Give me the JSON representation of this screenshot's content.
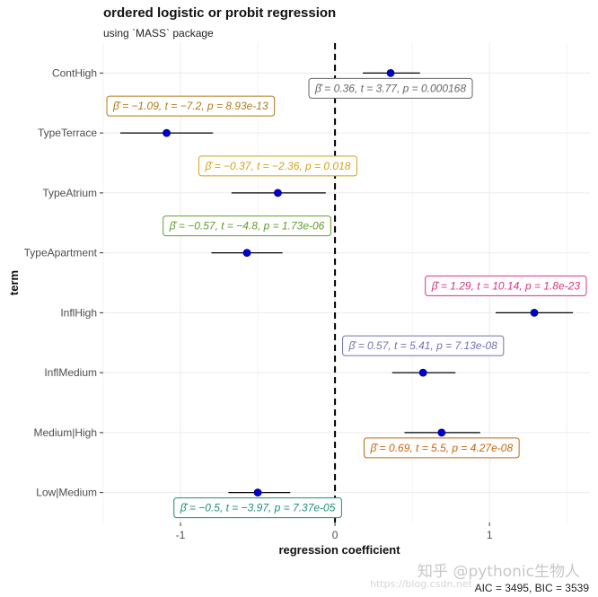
{
  "header": {
    "title": "ordered logistic or probit regression",
    "subtitle": "using `MASS` package"
  },
  "caption": "AIC = 3495, BIC = 3539",
  "watermark": {
    "main": "知乎 @pythonic生物人",
    "url": "https://blog.csdn.net"
  },
  "chart_data": {
    "type": "scatter",
    "subtype": "coefficient-plot",
    "xlabel": "regression coefficient",
    "ylabel": "term",
    "xlim": [
      -1.5,
      1.65
    ],
    "xticks": [
      -1,
      0,
      1
    ],
    "reference_line": 0,
    "grid": true,
    "legend": "none",
    "point_color": "#0000cd",
    "terms": [
      {
        "term": "ContHigh",
        "estimate": 0.36,
        "ci_low": 0.18,
        "ci_high": 0.55,
        "label": "β̂ = 0.36,  t = 3.77,  p = 0.000168",
        "color": "#666666",
        "label_side": "below"
      },
      {
        "term": "TypeTerrace",
        "estimate": -1.09,
        "ci_low": -1.39,
        "ci_high": -0.79,
        "label": "β̂ = −1.09,  t = −7.2,  p = 8.93e-13",
        "color": "#b07a18",
        "label_side": "above"
      },
      {
        "term": "TypeAtrium",
        "estimate": -0.37,
        "ci_low": -0.67,
        "ci_high": -0.06,
        "label": "β̂ = −0.37,  t = −2.36,  p = 0.018",
        "color": "#d4a017",
        "label_side": "above"
      },
      {
        "term": "TypeApartment",
        "estimate": -0.57,
        "ci_low": -0.8,
        "ci_high": -0.34,
        "label": "β̂ = −0.57,  t = −4.8,  p = 1.73e-06",
        "color": "#5f9e2c",
        "label_side": "above"
      },
      {
        "term": "InflHigh",
        "estimate": 1.29,
        "ci_low": 1.04,
        "ci_high": 1.54,
        "label": "β̂ = 1.29,  t = 10.14,  p = 1.8e-23",
        "color": "#d9338a",
        "label_side": "above"
      },
      {
        "term": "InflMedium",
        "estimate": 0.57,
        "ci_low": 0.37,
        "ci_high": 0.78,
        "label": "β̂ = 0.57,  t = 5.41,  p = 7.13e-08",
        "color": "#7570b3",
        "label_side": "above"
      },
      {
        "term": "Medium|High",
        "estimate": 0.69,
        "ci_low": 0.45,
        "ci_high": 0.94,
        "label": "β̂ = 0.69,  t = 5.5,  p = 4.27e-08",
        "color": "#c4650e",
        "label_side": "below"
      },
      {
        "term": "Low|Medium",
        "estimate": -0.5,
        "ci_low": -0.69,
        "ci_high": -0.29,
        "label": "β̂ = −0.5,  t = −3.97,  p = 7.37e-05",
        "color": "#1b8f78",
        "label_side": "below"
      }
    ]
  }
}
